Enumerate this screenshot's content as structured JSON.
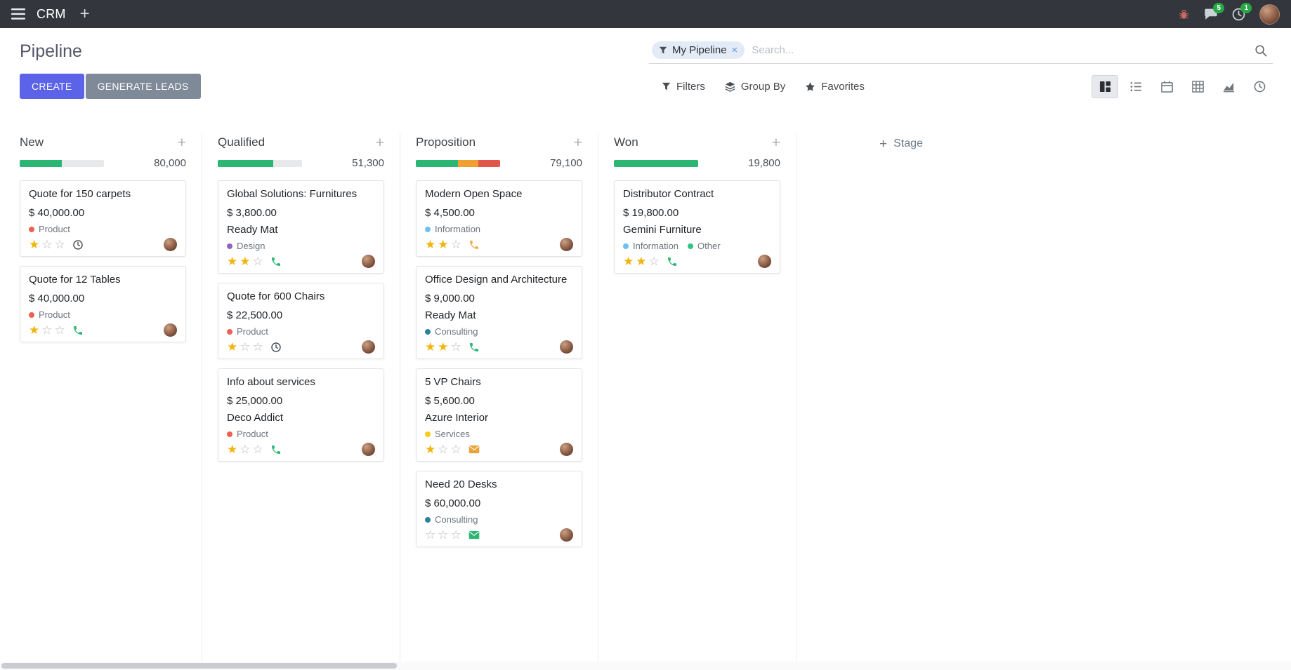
{
  "colors": {
    "accent": "#5b63e8",
    "secondary": "#7f8a99",
    "badge": "#28a745",
    "star_filled": "#f0b50f",
    "star_empty": "#b3b9bf",
    "progress_bg": "#e7e9eb"
  },
  "navbar": {
    "app_name": "CRM",
    "messages_badge": "5",
    "activities_badge": "1"
  },
  "control_panel": {
    "title": "Pipeline",
    "search_facet": "My Pipeline",
    "search_placeholder": "Search...",
    "create_label": "CREATE",
    "generate_leads_label": "GENERATE LEADS",
    "filters_label": "Filters",
    "group_by_label": "Group By",
    "favorites_label": "Favorites"
  },
  "board": {
    "add_stage_label": "Stage",
    "columns": [
      {
        "name": "New",
        "total": "80,000",
        "progress": [
          {
            "color": "#2bb673",
            "pct": 50
          }
        ],
        "cards": [
          {
            "title": "Quote for 150 carpets",
            "amount": "$ 40,000.00",
            "company": "",
            "tags": [
              {
                "label": "Product",
                "color": "#f06050"
              }
            ],
            "stars": 1,
            "activity": {
              "type": "clock",
              "color": "#495057"
            }
          },
          {
            "title": "Quote for 12 Tables",
            "amount": "$ 40,000.00",
            "company": "",
            "tags": [
              {
                "label": "Product",
                "color": "#f06050"
              }
            ],
            "stars": 1,
            "activity": {
              "type": "phone",
              "color": "#2bb673"
            }
          }
        ]
      },
      {
        "name": "Qualified",
        "total": "51,300",
        "progress": [
          {
            "color": "#2bb673",
            "pct": 66
          }
        ],
        "cards": [
          {
            "title": "Global Solutions: Furnitures",
            "amount": "$ 3,800.00",
            "company": "Ready Mat",
            "tags": [
              {
                "label": "Design",
                "color": "#9365b8"
              }
            ],
            "stars": 2,
            "activity": {
              "type": "phone",
              "color": "#2bb673"
            }
          },
          {
            "title": "Quote for 600 Chairs",
            "amount": "$ 22,500.00",
            "company": "",
            "tags": [
              {
                "label": "Product",
                "color": "#f06050"
              }
            ],
            "stars": 1,
            "activity": {
              "type": "clock",
              "color": "#495057"
            }
          },
          {
            "title": "Info about services",
            "amount": "$ 25,000.00",
            "company": "Deco Addict",
            "tags": [
              {
                "label": "Product",
                "color": "#f06050"
              }
            ],
            "stars": 1,
            "activity": {
              "type": "phone",
              "color": "#2bb673"
            }
          }
        ]
      },
      {
        "name": "Proposition",
        "total": "79,100",
        "progress": [
          {
            "color": "#2bb673",
            "pct": 50
          },
          {
            "color": "#f0a030",
            "pct": 24
          },
          {
            "color": "#e2574c",
            "pct": 26
          }
        ],
        "cards": [
          {
            "title": "Modern Open Space",
            "amount": "$ 4,500.00",
            "company": "",
            "tags": [
              {
                "label": "Information",
                "color": "#6cc1ed"
              }
            ],
            "stars": 2,
            "activity": {
              "type": "phone",
              "color": "#f0ad4e"
            }
          },
          {
            "title": "Office Design and Architecture",
            "amount": "$ 9,000.00",
            "company": "Ready Mat",
            "tags": [
              {
                "label": "Consulting",
                "color": "#2c8397"
              }
            ],
            "stars": 2,
            "activity": {
              "type": "phone",
              "color": "#2bb673"
            }
          },
          {
            "title": "5 VP Chairs",
            "amount": "$ 5,600.00",
            "company": "Azure Interior",
            "tags": [
              {
                "label": "Services",
                "color": "#f7cd1f"
              }
            ],
            "stars": 1,
            "activity": {
              "type": "mail",
              "color": "#e8a33d"
            }
          },
          {
            "title": "Need 20 Desks",
            "amount": "$ 60,000.00",
            "company": "",
            "tags": [
              {
                "label": "Consulting",
                "color": "#2c8397"
              }
            ],
            "stars": 0,
            "activity": {
              "type": "mail",
              "color": "#2bb673"
            }
          }
        ]
      },
      {
        "name": "Won",
        "total": "19,800",
        "progress": [
          {
            "color": "#2bb673",
            "pct": 100
          }
        ],
        "cards": [
          {
            "title": "Distributor Contract",
            "amount": "$ 19,800.00",
            "company": "Gemini Furniture",
            "tags": [
              {
                "label": "Information",
                "color": "#6cc1ed"
              },
              {
                "label": "Other",
                "color": "#30c381"
              }
            ],
            "stars": 2,
            "activity": {
              "type": "phone",
              "color": "#2bb673"
            }
          }
        ]
      }
    ]
  }
}
